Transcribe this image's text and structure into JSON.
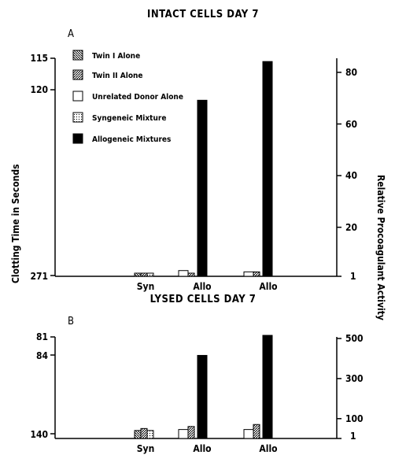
{
  "chart_data": [
    {
      "type": "bar",
      "title": "INTACT CELLS DAY 7",
      "panel_label": "A",
      "ylabel_left": "Clotting Time in Seconds",
      "ylabel_right": "Relative Procoagulant Activity",
      "yticks_left": [
        "115",
        "120",
        "271"
      ],
      "yticks_right": [
        "80",
        "60",
        "40",
        "20",
        "1"
      ],
      "ylim_right": [
        1,
        85
      ],
      "categories": [
        "Syn",
        "Allo",
        "Allo"
      ],
      "legend_placement": "top-left",
      "series": [
        {
          "name": "Twin I Alone",
          "pattern": "diag-back",
          "values": [
            1,
            1,
            1
          ]
        },
        {
          "name": "Twin II Alone",
          "pattern": "diag-fwd",
          "values": [
            1,
            1,
            1.5
          ]
        },
        {
          "name": "Unrelated Donor Alone",
          "pattern": "white",
          "values": [
            null,
            2,
            1.5
          ]
        },
        {
          "name": "Syngeneic Mixture",
          "pattern": "dots",
          "values": [
            1,
            null,
            null
          ]
        },
        {
          "name": "Allogeneic Mixtures",
          "pattern": "black",
          "values": [
            null,
            68,
            83
          ]
        }
      ]
    },
    {
      "type": "bar",
      "title": "LYSED CELLS DAY 7",
      "panel_label": "B",
      "yticks_left": [
        "81",
        "84",
        "140"
      ],
      "yticks_right": [
        "500",
        "300",
        "100",
        "1"
      ],
      "ylim_right": [
        1,
        510
      ],
      "categories": [
        "Syn",
        "Allo",
        "Allo"
      ],
      "series": [
        {
          "name": "Twin I Alone",
          "pattern": "diag-back",
          "values": [
            25,
            1,
            1
          ]
        },
        {
          "name": "Twin II Alone",
          "pattern": "diag-fwd",
          "values": [
            35,
            45,
            55
          ]
        },
        {
          "name": "Unrelated Donor Alone",
          "pattern": "white",
          "values": [
            null,
            30,
            30
          ]
        },
        {
          "name": "Syngeneic Mixture",
          "pattern": "dots",
          "values": [
            25,
            null,
            null
          ]
        },
        {
          "name": "Allogeneic Mixtures",
          "pattern": "black",
          "values": [
            null,
            400,
            500
          ]
        }
      ]
    }
  ]
}
